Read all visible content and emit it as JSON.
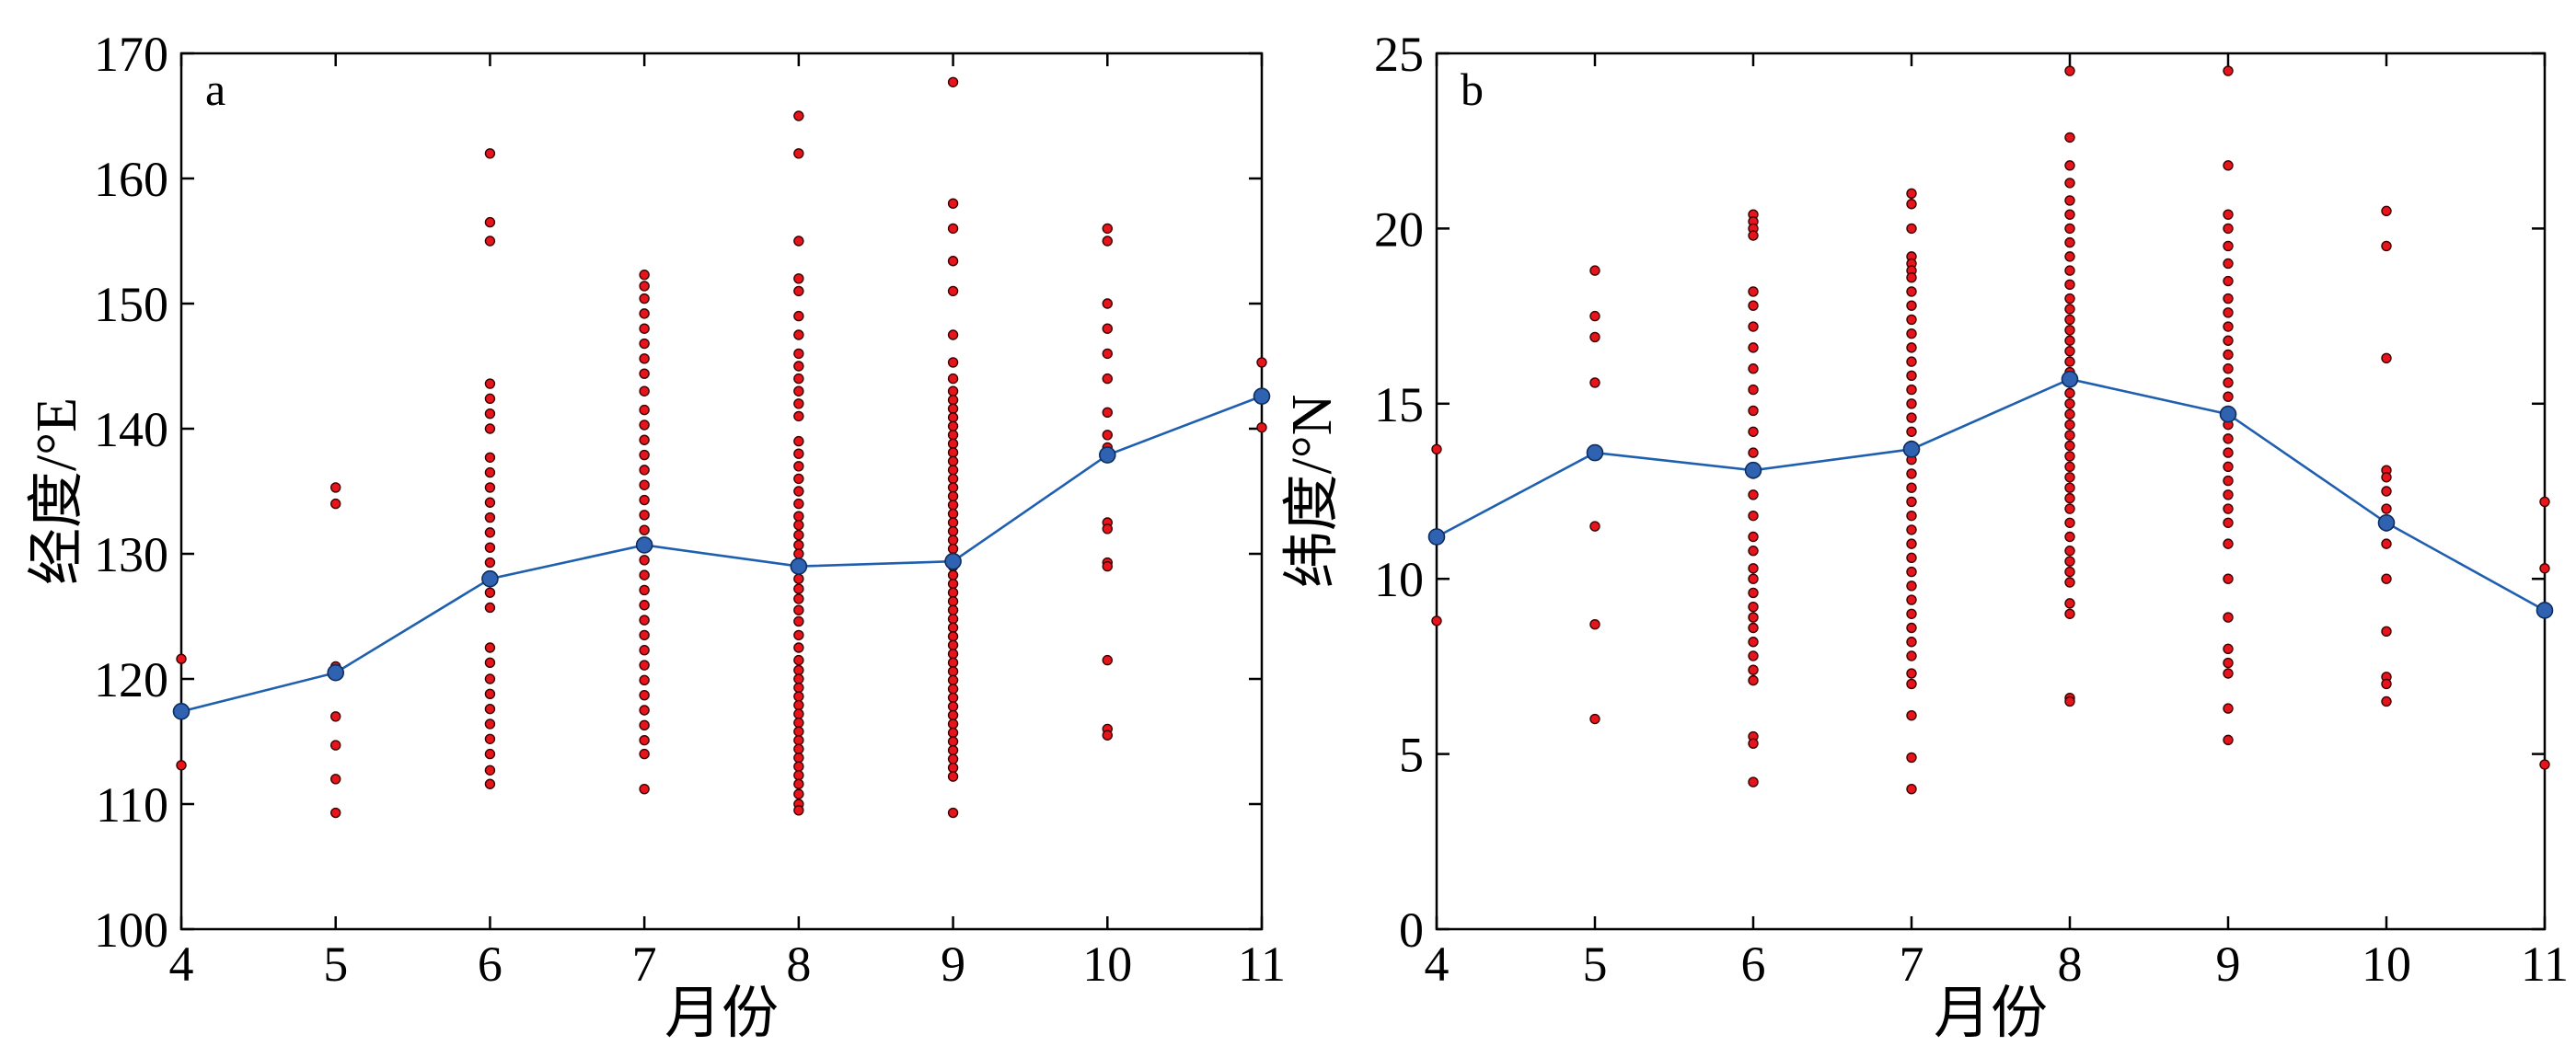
{
  "colors": {
    "scatter": "#e8141c",
    "mean": "#2f63b2",
    "mean_line": "#1f5fb0"
  },
  "chart_data": [
    {
      "type": "scatter",
      "panel_label": "a",
      "xlabel": "月份",
      "ylabel": "经度/°E",
      "xlim": [
        4,
        11
      ],
      "ylim": [
        100,
        170
      ],
      "xticks": [
        4,
        5,
        6,
        7,
        8,
        9,
        10,
        11
      ],
      "yticks": [
        100,
        110,
        120,
        130,
        140,
        150,
        160,
        170
      ],
      "grid": false,
      "points": [
        {
          "x": 4,
          "y": [
            121.6,
            113.1
          ]
        },
        {
          "x": 5,
          "y": [
            135.3,
            134.0,
            121.0,
            120.3,
            117.0,
            114.7,
            112.0,
            109.3
          ]
        },
        {
          "x": 6,
          "y": [
            162.0,
            156.5,
            155.0,
            143.6,
            142.4,
            141.2,
            140.0,
            137.7,
            136.5,
            135.3,
            134.1,
            132.9,
            131.7,
            130.5,
            129.3,
            128.1,
            126.9,
            125.7,
            122.5,
            121.3,
            120.0,
            118.8,
            117.6,
            116.4,
            115.2,
            114.0,
            112.7,
            111.6
          ]
        },
        {
          "x": 7,
          "y": [
            152.3,
            151.4,
            150.4,
            149.2,
            148.0,
            146.8,
            145.6,
            144.4,
            143.0,
            141.5,
            140.3,
            139.1,
            137.9,
            136.7,
            135.5,
            134.3,
            133.1,
            131.9,
            130.7,
            129.5,
            128.3,
            127.1,
            125.9,
            124.7,
            123.5,
            122.3,
            121.1,
            119.9,
            118.7,
            117.5,
            116.3,
            115.1,
            114.0,
            111.2
          ]
        },
        {
          "x": 8,
          "y": [
            165.0,
            162.0,
            155.0,
            152.0,
            151.0,
            149.0,
            147.5,
            146.0,
            145.0,
            144.0,
            143.0,
            142.0,
            141.0,
            139.0,
            138.0,
            137.0,
            136.0,
            135.0,
            134.0,
            133.0,
            132.3,
            131.5,
            130.7,
            130.0,
            129.0,
            128.0,
            127.2,
            126.4,
            125.5,
            124.6,
            123.5,
            122.5,
            121.5,
            120.7,
            120.0,
            119.3,
            118.6,
            117.9,
            117.2,
            116.5,
            115.8,
            115.1,
            114.4,
            113.7,
            113.0,
            112.3,
            111.6,
            110.8,
            110.0,
            109.5
          ]
        },
        {
          "x": 9,
          "y": [
            167.7,
            158.0,
            156.0,
            153.4,
            151.0,
            147.5,
            145.3,
            144.0,
            143.0,
            142.3,
            141.6,
            140.9,
            140.2,
            139.5,
            138.8,
            138.1,
            137.4,
            136.7,
            136.0,
            135.3,
            134.6,
            133.9,
            133.2,
            132.5,
            131.8,
            131.1,
            130.4,
            129.7,
            129.0,
            128.3,
            127.6,
            126.9,
            126.2,
            125.5,
            124.8,
            124.1,
            123.4,
            122.7,
            122.0,
            121.3,
            120.6,
            119.9,
            119.2,
            118.5,
            117.8,
            117.1,
            116.4,
            115.7,
            115.0,
            114.3,
            113.6,
            112.9,
            112.2,
            109.3
          ]
        },
        {
          "x": 10,
          "y": [
            156.0,
            155.0,
            150.0,
            148.0,
            146.0,
            144.0,
            141.3,
            139.5,
            138.5,
            132.5,
            132.0,
            129.3,
            129.0,
            121.5,
            116.0,
            115.5
          ]
        },
        {
          "x": 11,
          "y": [
            145.3,
            140.1
          ]
        }
      ],
      "series": [
        {
          "name": "",
          "x": [
            4,
            5,
            6,
            7,
            8,
            9,
            10,
            11
          ],
          "y": [
            117.4,
            120.5,
            128.0,
            130.7,
            129.0,
            129.4,
            137.9,
            142.6
          ]
        }
      ]
    },
    {
      "type": "scatter",
      "panel_label": "b",
      "xlabel": "月份",
      "ylabel": "纬度/°N",
      "xlim": [
        4,
        11
      ],
      "ylim": [
        0,
        25
      ],
      "xticks": [
        4,
        5,
        6,
        7,
        8,
        9,
        10,
        11
      ],
      "yticks": [
        0,
        5,
        10,
        15,
        20,
        25
      ],
      "grid": false,
      "points": [
        {
          "x": 4,
          "y": [
            13.7,
            8.8
          ]
        },
        {
          "x": 5,
          "y": [
            18.8,
            17.5,
            16.9,
            15.6,
            11.5,
            8.7,
            6.0
          ]
        },
        {
          "x": 6,
          "y": [
            20.4,
            20.2,
            20.0,
            19.8,
            18.2,
            17.8,
            17.2,
            16.6,
            16.0,
            15.4,
            14.8,
            14.2,
            13.6,
            13.0,
            12.4,
            11.8,
            11.2,
            10.8,
            10.3,
            10.0,
            9.6,
            9.2,
            8.9,
            8.6,
            8.2,
            7.8,
            7.4,
            7.1,
            5.5,
            5.3,
            4.2
          ]
        },
        {
          "x": 7,
          "y": [
            21.0,
            20.7,
            20.0,
            19.2,
            19.0,
            18.8,
            18.6,
            18.2,
            17.8,
            17.4,
            17.0,
            16.6,
            16.2,
            15.8,
            15.4,
            15.0,
            14.6,
            14.2,
            13.8,
            13.4,
            13.0,
            12.6,
            12.2,
            11.8,
            11.4,
            11.0,
            10.6,
            10.2,
            9.8,
            9.4,
            9.0,
            8.6,
            8.2,
            7.8,
            7.3,
            7.0,
            6.1,
            4.9,
            4.0
          ]
        },
        {
          "x": 8,
          "y": [
            24.5,
            22.6,
            21.8,
            21.3,
            20.8,
            20.4,
            20.0,
            19.6,
            19.2,
            18.8,
            18.4,
            18.0,
            17.7,
            17.4,
            17.1,
            16.8,
            16.5,
            16.2,
            15.9,
            15.6,
            15.3,
            15.0,
            14.7,
            14.4,
            14.1,
            13.8,
            13.5,
            13.2,
            12.9,
            12.6,
            12.3,
            12.0,
            11.6,
            11.2,
            10.8,
            10.5,
            10.2,
            9.9,
            9.3,
            9.0,
            6.6,
            6.5
          ]
        },
        {
          "x": 9,
          "y": [
            24.5,
            21.8,
            20.4,
            20.0,
            19.5,
            19.0,
            18.5,
            18.0,
            17.6,
            17.2,
            16.8,
            16.4,
            16.0,
            15.6,
            15.2,
            14.8,
            14.4,
            14.0,
            13.6,
            13.2,
            12.8,
            12.4,
            12.0,
            11.6,
            11.0,
            10.0,
            8.9,
            8.0,
            7.6,
            7.3,
            6.3,
            5.4
          ]
        },
        {
          "x": 10,
          "y": [
            20.5,
            19.5,
            16.3,
            13.1,
            12.9,
            12.5,
            12.0,
            11.5,
            11.0,
            10.0,
            8.5,
            7.2,
            7.0,
            6.5
          ]
        },
        {
          "x": 11,
          "y": [
            12.2,
            10.3,
            4.7
          ]
        }
      ],
      "series": [
        {
          "name": "",
          "x": [
            4,
            5,
            6,
            7,
            8,
            9,
            10,
            11
          ],
          "y": [
            11.2,
            13.6,
            13.1,
            13.7,
            15.7,
            14.7,
            11.6,
            9.1
          ]
        }
      ]
    }
  ]
}
